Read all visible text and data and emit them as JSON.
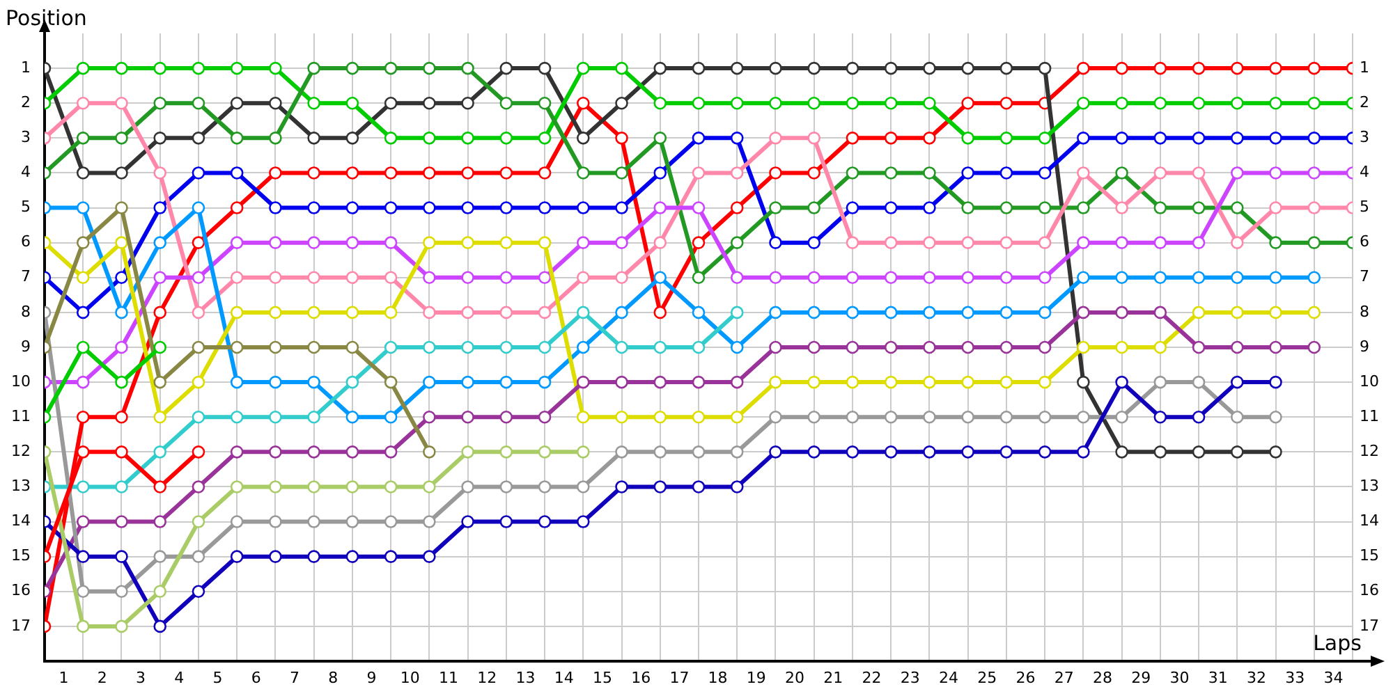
{
  "chart_data": {
    "type": "line",
    "xlabel": "Laps",
    "ylabel": "Position",
    "x": [
      0,
      1,
      2,
      3,
      4,
      5,
      6,
      7,
      8,
      9,
      10,
      11,
      12,
      13,
      14,
      15,
      16,
      17,
      18,
      19,
      20,
      21,
      22,
      23,
      24,
      25,
      26,
      27,
      28,
      29,
      30,
      31,
      32,
      33,
      34
    ],
    "xlim": [
      0,
      34
    ],
    "ylim": [
      18,
      0
    ],
    "y2lim": [
      18,
      0
    ],
    "xticks": [
      {
        "value": 0.5,
        "label": "1"
      },
      {
        "value": 1,
        "label": null
      },
      {
        "value": 1.5,
        "label": "2"
      },
      {
        "value": 2,
        "label": null
      },
      {
        "value": 2.5,
        "label": "3"
      },
      {
        "value": 3,
        "label": null
      },
      {
        "value": 3.5,
        "label": "4"
      },
      {
        "value": 4,
        "label": null
      },
      {
        "value": 4.5,
        "label": "5"
      },
      {
        "value": 5,
        "label": null
      },
      {
        "value": 5.5,
        "label": "6"
      },
      {
        "value": 6,
        "label": null
      },
      {
        "value": 6.5,
        "label": "7"
      },
      {
        "value": 7,
        "label": null
      },
      {
        "value": 7.5,
        "label": "8"
      },
      {
        "value": 8,
        "label": null
      },
      {
        "value": 8.5,
        "label": "9"
      },
      {
        "value": 9,
        "label": null
      },
      {
        "value": 9.5,
        "label": "10"
      },
      {
        "value": 10,
        "label": null
      },
      {
        "value": 10.5,
        "label": "11"
      },
      {
        "value": 11,
        "label": null
      },
      {
        "value": 11.5,
        "label": "12"
      },
      {
        "value": 12,
        "label": null
      },
      {
        "value": 12.5,
        "label": "13"
      },
      {
        "value": 13,
        "label": null
      },
      {
        "value": 13.5,
        "label": "14"
      },
      {
        "value": 14,
        "label": null
      },
      {
        "value": 14.5,
        "label": "15"
      },
      {
        "value": 15,
        "label": null
      },
      {
        "value": 15.5,
        "label": "16"
      },
      {
        "value": 16,
        "label": null
      },
      {
        "value": 16.5,
        "label": "17"
      },
      {
        "value": 17,
        "label": null
      },
      {
        "value": 17.5,
        "label": "18"
      },
      {
        "value": 18,
        "label": null
      },
      {
        "value": 18.5,
        "label": "19"
      },
      {
        "value": 19,
        "label": null
      },
      {
        "value": 19.5,
        "label": "20"
      },
      {
        "value": 20,
        "label": null
      },
      {
        "value": 20.5,
        "label": "21"
      },
      {
        "value": 21,
        "label": null
      },
      {
        "value": 21.5,
        "label": "22"
      },
      {
        "value": 22,
        "label": null
      },
      {
        "value": 22.5,
        "label": "23"
      },
      {
        "value": 23,
        "label": null
      },
      {
        "value": 23.5,
        "label": "24"
      },
      {
        "value": 24,
        "label": null
      },
      {
        "value": 24.5,
        "label": "25"
      },
      {
        "value": 25,
        "label": null
      },
      {
        "value": 25.5,
        "label": "26"
      },
      {
        "value": 26,
        "label": null
      },
      {
        "value": 26.5,
        "label": "27"
      },
      {
        "value": 27,
        "label": null
      },
      {
        "value": 27.5,
        "label": "28"
      },
      {
        "value": 28,
        "label": null
      },
      {
        "value": 28.5,
        "label": "29"
      },
      {
        "value": 29,
        "label": null
      },
      {
        "value": 29.5,
        "label": "30"
      },
      {
        "value": 30,
        "label": null
      },
      {
        "value": 30.5,
        "label": "31"
      },
      {
        "value": 31,
        "label": null
      },
      {
        "value": 31.5,
        "label": "32"
      },
      {
        "value": 32,
        "label": null
      },
      {
        "value": 32.5,
        "label": "33"
      },
      {
        "value": 33,
        "label": null
      },
      {
        "value": 33.5,
        "label": "34"
      },
      {
        "value": 34,
        "label": null
      }
    ],
    "yticks": [
      1,
      2,
      3,
      4,
      5,
      6,
      7,
      8,
      9,
      10,
      11,
      12,
      13,
      14,
      15,
      16,
      17
    ],
    "y2ticks": [
      1,
      2,
      3,
      4,
      5,
      6,
      7,
      8,
      9,
      10,
      11,
      12,
      13,
      14,
      15,
      16,
      17
    ],
    "grid": true,
    "marker": "circle",
    "line_style": "solid",
    "series": [
      {
        "color": "#ff0000",
        "values": [
          15,
          12,
          12,
          13,
          12,
          null,
          null,
          null,
          null,
          null,
          null,
          null,
          null,
          null,
          null,
          null,
          null,
          null,
          null,
          null,
          null,
          null,
          null,
          null,
          null,
          null,
          null,
          null,
          null,
          null,
          null,
          null,
          null,
          null,
          null
        ]
      },
      {
        "color": "#00cc00",
        "values": [
          11,
          9,
          10,
          9,
          null,
          null,
          null,
          null,
          null,
          null,
          null,
          null,
          null,
          null,
          null,
          null,
          null,
          null,
          null,
          null,
          null,
          null,
          null,
          null,
          null,
          null,
          null,
          null,
          null,
          null,
          null,
          null,
          null,
          null,
          null
        ]
      },
      {
        "color": "#888844",
        "values": [
          9,
          6,
          5,
          10,
          9,
          9,
          9,
          9,
          9,
          10,
          12,
          null,
          null,
          null,
          null,
          null,
          null,
          null,
          null,
          null,
          null,
          null,
          null,
          null,
          null,
          null,
          null,
          null,
          null,
          null,
          null,
          null,
          null,
          null,
          null
        ]
      },
      {
        "color": "#aacc66",
        "values": [
          12,
          17,
          17,
          16,
          14,
          13,
          13,
          13,
          13,
          13,
          13,
          12,
          12,
          12,
          12,
          null,
          null,
          null,
          null,
          null,
          null,
          null,
          null,
          null,
          null,
          null,
          null,
          null,
          null,
          null,
          null,
          null,
          null,
          null,
          null
        ]
      },
      {
        "color": "#33cccc",
        "values": [
          13,
          13,
          13,
          12,
          11,
          11,
          11,
          11,
          10,
          9,
          9,
          9,
          9,
          9,
          8,
          9,
          9,
          9,
          8,
          null,
          null,
          null,
          null,
          null,
          null,
          null,
          null,
          null,
          null,
          null,
          null,
          null,
          null,
          null,
          null
        ]
      },
      {
        "color": "#1100bb",
        "values": [
          14,
          15,
          15,
          17,
          16,
          15,
          15,
          15,
          15,
          15,
          15,
          14,
          14,
          14,
          14,
          13,
          13,
          13,
          13,
          12,
          12,
          12,
          12,
          12,
          12,
          12,
          12,
          12,
          10,
          11,
          11,
          10,
          10,
          null,
          null
        ]
      },
      {
        "color": "#999999",
        "values": [
          8,
          16,
          16,
          15,
          15,
          14,
          14,
          14,
          14,
          14,
          14,
          13,
          13,
          13,
          13,
          12,
          12,
          12,
          12,
          11,
          11,
          11,
          11,
          11,
          11,
          11,
          11,
          11,
          11,
          10,
          10,
          11,
          11,
          null,
          null
        ]
      },
      {
        "color": "#993399",
        "values": [
          16,
          14,
          14,
          14,
          13,
          12,
          12,
          12,
          12,
          12,
          11,
          11,
          11,
          11,
          10,
          10,
          10,
          10,
          10,
          9,
          9,
          9,
          9,
          9,
          9,
          9,
          9,
          8,
          8,
          8,
          9,
          9,
          9,
          9,
          null
        ]
      },
      {
        "color": "#dddd00",
        "values": [
          6,
          7,
          6,
          11,
          10,
          8,
          8,
          8,
          8,
          8,
          6,
          6,
          6,
          6,
          11,
          11,
          11,
          11,
          11,
          10,
          10,
          10,
          10,
          10,
          10,
          10,
          10,
          9,
          9,
          9,
          8,
          8,
          8,
          8,
          null
        ]
      },
      {
        "color": "#0099ff",
        "values": [
          5,
          5,
          8,
          6,
          5,
          10,
          10,
          10,
          11,
          11,
          10,
          10,
          10,
          10,
          9,
          8,
          7,
          8,
          9,
          8,
          8,
          8,
          8,
          8,
          8,
          8,
          8,
          7,
          7,
          7,
          7,
          7,
          7,
          7,
          null
        ]
      },
      {
        "color": "#cc44ff",
        "values": [
          10,
          10,
          9,
          7,
          7,
          6,
          6,
          6,
          6,
          6,
          7,
          7,
          7,
          7,
          6,
          6,
          5,
          5,
          7,
          7,
          7,
          7,
          7,
          7,
          7,
          7,
          7,
          6,
          6,
          6,
          6,
          4,
          4,
          4,
          4
        ]
      },
      {
        "color": "#ff88aa",
        "values": [
          3,
          2,
          2,
          4,
          8,
          7,
          7,
          7,
          7,
          7,
          8,
          8,
          8,
          8,
          7,
          7,
          6,
          4,
          4,
          3,
          3,
          6,
          6,
          6,
          6,
          6,
          6,
          4,
          5,
          4,
          4,
          6,
          5,
          5,
          5
        ]
      },
      {
        "color": "#229922",
        "values": [
          4,
          3,
          3,
          2,
          2,
          3,
          3,
          1,
          1,
          1,
          1,
          1,
          2,
          2,
          4,
          4,
          3,
          7,
          6,
          5,
          5,
          4,
          4,
          4,
          5,
          5,
          5,
          5,
          4,
          5,
          5,
          5,
          6,
          6,
          6
        ]
      },
      {
        "color": "#0000ee",
        "values": [
          7,
          8,
          7,
          5,
          4,
          4,
          5,
          5,
          5,
          5,
          5,
          5,
          5,
          5,
          5,
          5,
          4,
          3,
          3,
          6,
          6,
          5,
          5,
          5,
          4,
          4,
          4,
          3,
          3,
          3,
          3,
          3,
          3,
          3,
          3
        ]
      },
      {
        "color": "#00cc00",
        "values": [
          2,
          1,
          1,
          1,
          1,
          1,
          1,
          2,
          2,
          3,
          3,
          3,
          3,
          3,
          1,
          1,
          2,
          2,
          2,
          2,
          2,
          2,
          2,
          2,
          3,
          3,
          3,
          2,
          2,
          2,
          2,
          2,
          2,
          2,
          2
        ]
      },
      {
        "color": "#333333",
        "values": [
          1,
          4,
          4,
          3,
          3,
          2,
          2,
          3,
          3,
          2,
          2,
          2,
          1,
          1,
          3,
          2,
          1,
          1,
          1,
          1,
          1,
          1,
          1,
          1,
          1,
          1,
          1,
          10,
          12,
          12,
          12,
          12,
          12,
          null,
          null
        ]
      },
      {
        "color": "#ff0000",
        "values": [
          17,
          11,
          11,
          8,
          6,
          5,
          4,
          4,
          4,
          4,
          4,
          4,
          4,
          4,
          2,
          3,
          8,
          6,
          5,
          4,
          4,
          3,
          3,
          3,
          2,
          2,
          2,
          1,
          1,
          1,
          1,
          1,
          1,
          1,
          1
        ]
      }
    ]
  }
}
